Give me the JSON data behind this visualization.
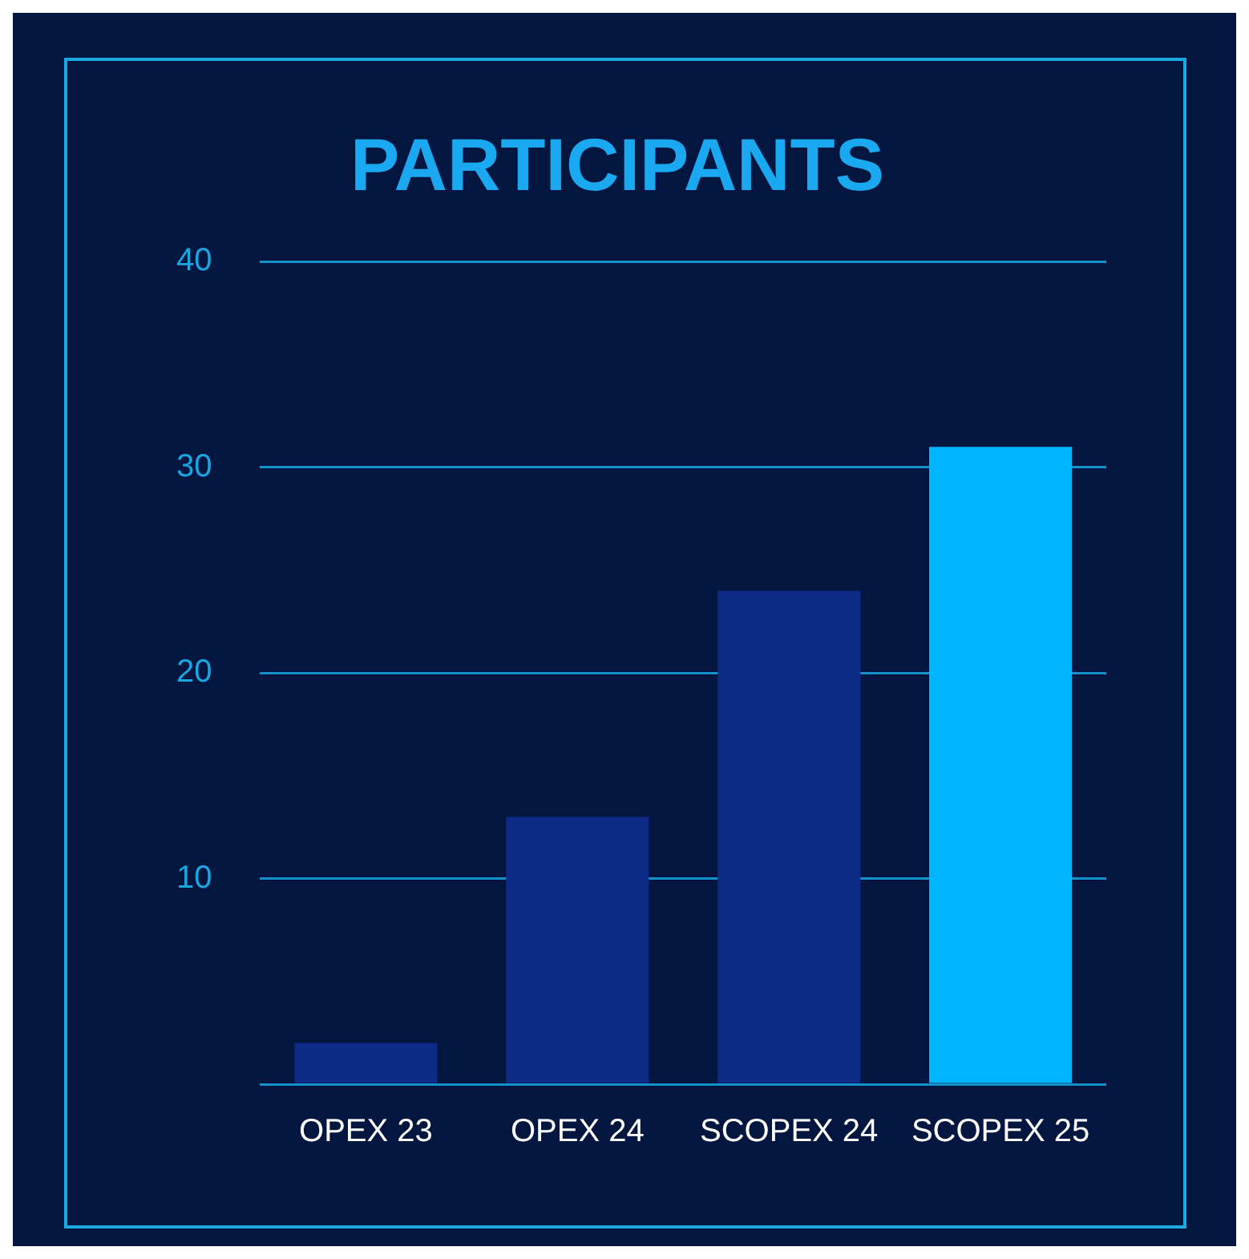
{
  "chart_data": {
    "type": "bar",
    "title": "PARTICIPANTS",
    "categories": [
      "OPEX 23",
      "OPEX 24",
      "SCOPEX 24",
      "SCOPEX 25"
    ],
    "values": [
      2,
      13,
      24,
      31
    ],
    "colors": [
      "#0c2a86",
      "#0c2a86",
      "#0c2a86",
      "#00b4ff"
    ],
    "ylim": [
      0,
      40
    ],
    "yticks": [
      {
        "value": 0,
        "label": null
      },
      10,
      20,
      30,
      40
    ],
    "grid": "y"
  }
}
